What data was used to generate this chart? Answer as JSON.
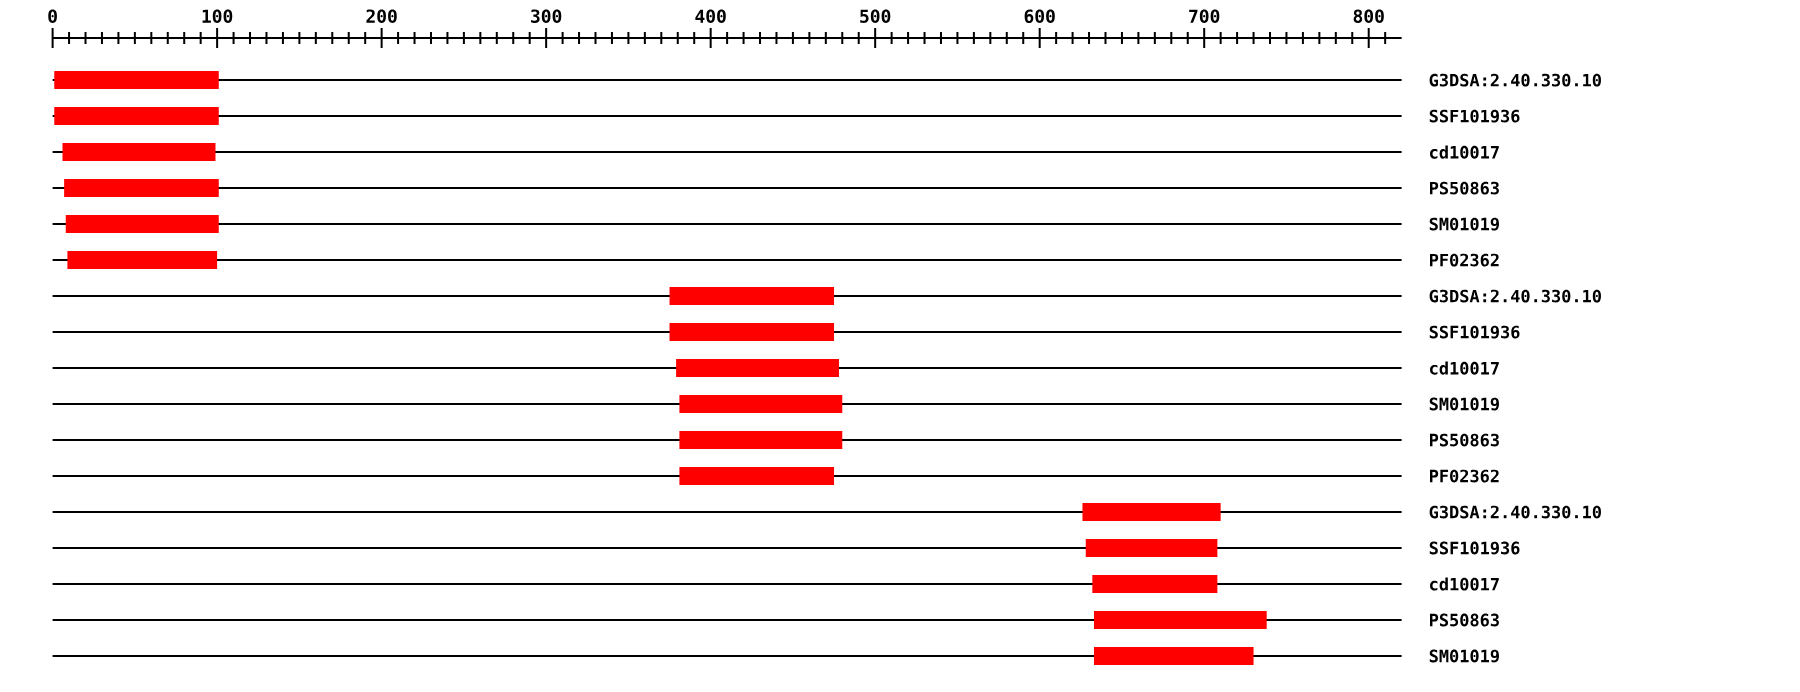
{
  "chart_data": {
    "type": "bar",
    "orientation": "horizontal",
    "categories": [
      "G3DSA:2.40.330.10",
      "SSF101936",
      "cd10017",
      "PS50863",
      "SM01019",
      "PF02362",
      "G3DSA:2.40.330.10",
      "SSF101936",
      "cd10017",
      "SM01019",
      "PS50863",
      "PF02362",
      "G3DSA:2.40.330.10",
      "SSF101936",
      "cd10017",
      "PS50863",
      "SM01019"
    ],
    "base": [
      1,
      1,
      6,
      7,
      8,
      9,
      375,
      375,
      379,
      381,
      381,
      381,
      626,
      628,
      632,
      633,
      633
    ],
    "values": [
      100,
      100,
      93,
      94,
      93,
      91,
      100,
      100,
      99,
      99,
      99,
      94,
      84,
      80,
      76,
      105,
      97
    ],
    "color": "#ff0000",
    "xlim": [
      0,
      820
    ],
    "xticks": [
      0,
      {
        "value": 10,
        "label": null
      },
      {
        "value": 20,
        "label": null
      },
      {
        "value": 30,
        "label": null
      },
      {
        "value": 40,
        "label": null
      },
      {
        "value": 50,
        "label": null
      },
      {
        "value": 60,
        "label": null
      },
      {
        "value": 70,
        "label": null
      },
      {
        "value": 80,
        "label": null
      },
      {
        "value": 90,
        "label": null
      },
      100,
      {
        "value": 110,
        "label": null
      },
      {
        "value": 120,
        "label": null
      },
      {
        "value": 130,
        "label": null
      },
      {
        "value": 140,
        "label": null
      },
      {
        "value": 150,
        "label": null
      },
      {
        "value": 160,
        "label": null
      },
      {
        "value": 170,
        "label": null
      },
      {
        "value": 180,
        "label": null
      },
      {
        "value": 190,
        "label": null
      },
      200,
      {
        "value": 210,
        "label": null
      },
      {
        "value": 220,
        "label": null
      },
      {
        "value": 230,
        "label": null
      },
      {
        "value": 240,
        "label": null
      },
      {
        "value": 250,
        "label": null
      },
      {
        "value": 260,
        "label": null
      },
      {
        "value": 270,
        "label": null
      },
      {
        "value": 280,
        "label": null
      },
      {
        "value": 290,
        "label": null
      },
      300,
      {
        "value": 310,
        "label": null
      },
      {
        "value": 320,
        "label": null
      },
      {
        "value": 330,
        "label": null
      },
      {
        "value": 340,
        "label": null
      },
      {
        "value": 350,
        "label": null
      },
      {
        "value": 360,
        "label": null
      },
      {
        "value": 370,
        "label": null
      },
      {
        "value": 380,
        "label": null
      },
      {
        "value": 390,
        "label": null
      },
      400,
      {
        "value": 410,
        "label": null
      },
      {
        "value": 420,
        "label": null
      },
      {
        "value": 430,
        "label": null
      },
      {
        "value": 440,
        "label": null
      },
      {
        "value": 450,
        "label": null
      },
      {
        "value": 460,
        "label": null
      },
      {
        "value": 470,
        "label": null
      },
      {
        "value": 480,
        "label": null
      },
      {
        "value": 490,
        "label": null
      },
      500,
      {
        "value": 510,
        "label": null
      },
      {
        "value": 520,
        "label": null
      },
      {
        "value": 530,
        "label": null
      },
      {
        "value": 540,
        "label": null
      },
      {
        "value": 550,
        "label": null
      },
      {
        "value": 560,
        "label": null
      },
      {
        "value": 570,
        "label": null
      },
      {
        "value": 580,
        "label": null
      },
      {
        "value": 590,
        "label": null
      },
      600,
      {
        "value": 610,
        "label": null
      },
      {
        "value": 620,
        "label": null
      },
      {
        "value": 630,
        "label": null
      },
      {
        "value": 640,
        "label": null
      },
      {
        "value": 650,
        "label": null
      },
      {
        "value": 660,
        "label": null
      },
      {
        "value": 670,
        "label": null
      },
      {
        "value": 680,
        "label": null
      },
      {
        "value": 690,
        "label": null
      },
      700,
      {
        "value": 710,
        "label": null
      },
      {
        "value": 720,
        "label": null
      },
      {
        "value": 730,
        "label": null
      },
      {
        "value": 740,
        "label": null
      },
      {
        "value": 750,
        "label": null
      },
      {
        "value": 760,
        "label": null
      },
      {
        "value": 770,
        "label": null
      },
      {
        "value": 780,
        "label": null
      },
      {
        "value": 790,
        "label": null
      },
      800,
      {
        "value": 810,
        "label": null
      }
    ],
    "grid": "y"
  }
}
